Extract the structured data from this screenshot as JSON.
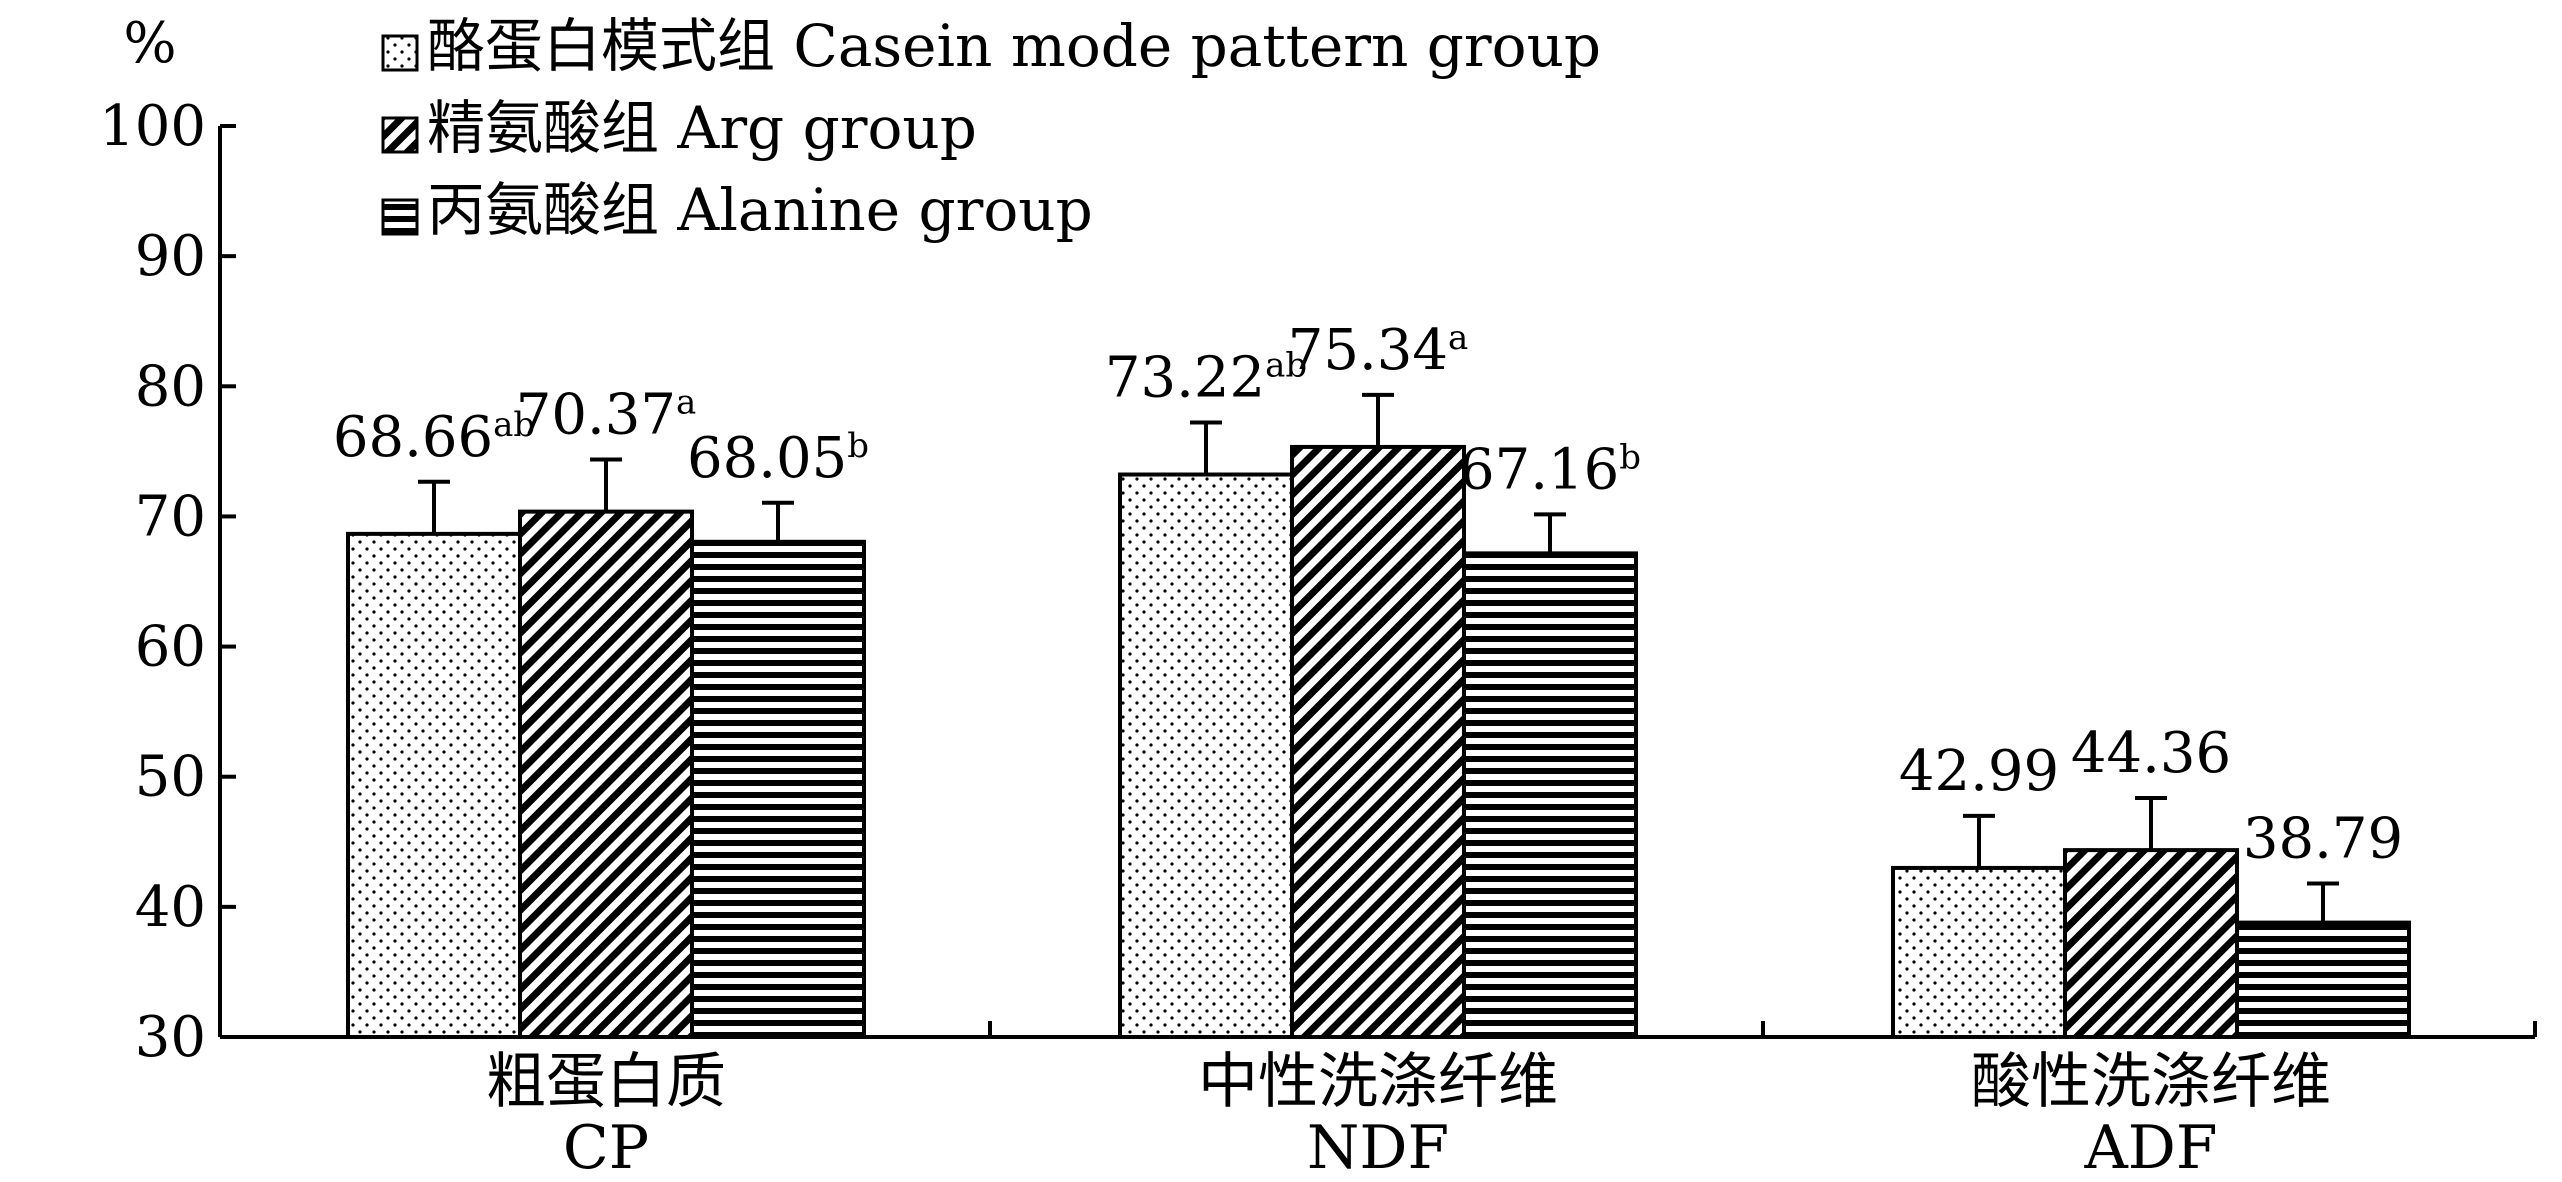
{
  "chart_data": {
    "type": "bar",
    "ylabel": "%",
    "ylim": [
      30,
      100
    ],
    "yticks": [
      "30",
      "40",
      "50",
      "60",
      "70",
      "80",
      "90",
      "100"
    ],
    "grid": false,
    "legend_position": "top-left",
    "categories": [
      {
        "zh": "粗蛋白质",
        "en": "CP"
      },
      {
        "zh": "中性洗涤纤维",
        "en": "NDF"
      },
      {
        "zh": "酸性洗涤纤维",
        "en": "ADF"
      }
    ],
    "series": [
      {
        "name": "酪蛋白模式组 Casein mode pattern group",
        "pattern": "dots",
        "values": [
          68.66,
          73.22,
          42.99
        ],
        "errors": [
          4.0,
          4.0,
          4.0
        ],
        "labels": [
          "68.66",
          "73.22",
          "42.99"
        ],
        "superscripts": [
          "ab",
          "ab",
          ""
        ]
      },
      {
        "name": "精氨酸组  Arg group",
        "pattern": "diagonal",
        "values": [
          70.37,
          75.34,
          44.36
        ],
        "errors": [
          4.0,
          4.0,
          4.0
        ],
        "labels": [
          "70.37",
          "75.34",
          "44.36"
        ],
        "superscripts": [
          "a",
          "a",
          ""
        ]
      },
      {
        "name": "丙氨酸组  Alanine group",
        "pattern": "horizontal",
        "values": [
          68.05,
          67.16,
          38.79
        ],
        "errors": [
          3.0,
          3.0,
          3.0
        ],
        "labels": [
          "68.05",
          "67.16",
          "38.79"
        ],
        "superscripts": [
          "b",
          "b",
          ""
        ]
      }
    ]
  }
}
